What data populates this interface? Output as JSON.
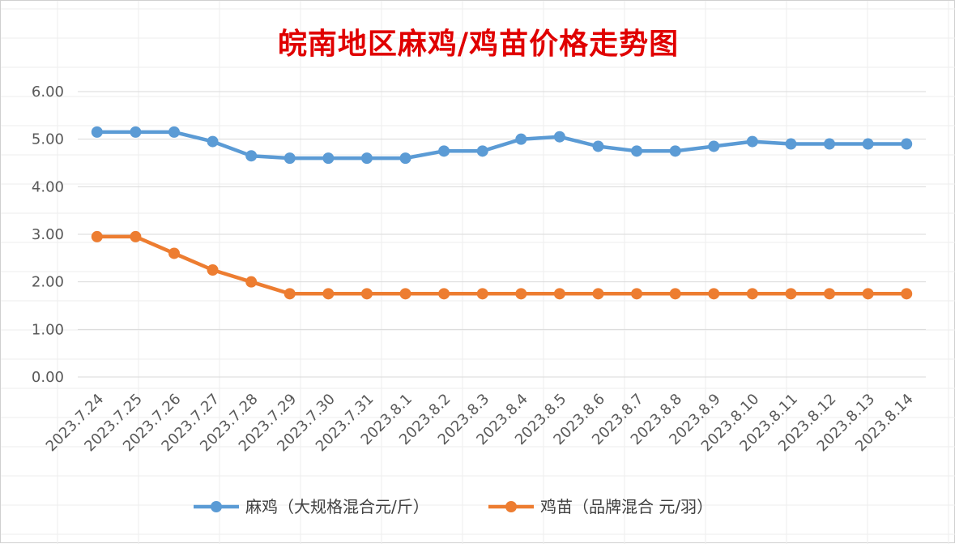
{
  "chart_data": {
    "type": "line",
    "title": "皖南地区麻鸡/鸡苗价格走势图",
    "xlabel": "",
    "ylabel": "",
    "x": [
      "2023.7.24",
      "2023.7.25",
      "2023.7.26",
      "2023.7.27",
      "2023.7.28",
      "2023.7.29",
      "2023.7.30",
      "2023.7.31",
      "2023.8.1",
      "2023.8.2",
      "2023.8.3",
      "2023.8.4",
      "2023.8.5",
      "2023.8.6",
      "2023.8.7",
      "2023.8.8",
      "2023.8.9",
      "2023.8.10",
      "2023.8.11",
      "2023.8.12",
      "2023.8.13",
      "2023.8.14"
    ],
    "ylim": [
      0,
      6
    ],
    "yticks": [
      "0.00",
      "1.00",
      "2.00",
      "3.00",
      "4.00",
      "5.00",
      "6.00"
    ],
    "grid": true,
    "legend_position": "bottom",
    "series": [
      {
        "name": "麻鸡（大规格混合元/斤）",
        "color": "#5b9bd5",
        "values": [
          5.15,
          5.15,
          5.15,
          4.95,
          4.65,
          4.6,
          4.6,
          4.6,
          4.6,
          4.75,
          4.75,
          5.0,
          5.05,
          4.85,
          4.75,
          4.75,
          4.85,
          4.95,
          4.9,
          4.9,
          4.9,
          4.9
        ]
      },
      {
        "name": "鸡苗（品牌混合 元/羽）",
        "color": "#ed7d31",
        "values": [
          2.95,
          2.95,
          2.6,
          2.25,
          2.0,
          1.75,
          1.75,
          1.75,
          1.75,
          1.75,
          1.75,
          1.75,
          1.75,
          1.75,
          1.75,
          1.75,
          1.75,
          1.75,
          1.75,
          1.75,
          1.75,
          1.75
        ]
      }
    ]
  }
}
